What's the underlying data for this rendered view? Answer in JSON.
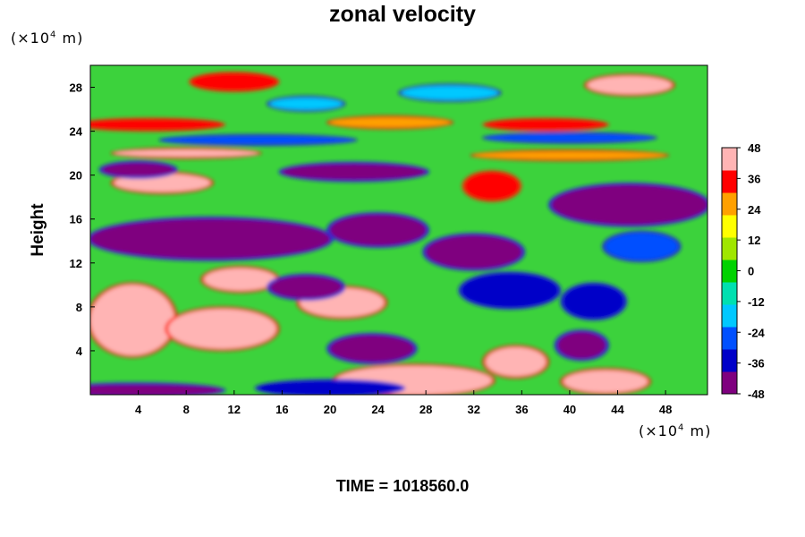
{
  "chart_data": {
    "type": "heatmap",
    "title": "zonal velocity",
    "ylabel": "Height",
    "xlabel": "",
    "x_unit_prefix": "(×10",
    "x_unit_exp": "4",
    "x_unit_suffix": " m)",
    "y_unit_prefix": "(×10",
    "y_unit_exp": "4",
    "y_unit_suffix": " m)",
    "xlim": [
      0,
      51.5
    ],
    "ylim": [
      0,
      30
    ],
    "x_ticks": [
      4,
      8,
      12,
      16,
      20,
      24,
      28,
      32,
      36,
      40,
      44,
      48
    ],
    "y_ticks": [
      4,
      8,
      12,
      16,
      20,
      24,
      28
    ],
    "colorbar": {
      "range": [
        -48,
        48
      ],
      "ticks": [
        48,
        36,
        24,
        12,
        0,
        -12,
        -24,
        -36,
        -48
      ],
      "colors": [
        "#7f007f",
        "#0000c8",
        "#0050ff",
        "#00c8ff",
        "#00e0b0",
        "#00d200",
        "#a0e600",
        "#ffff00",
        "#ffa000",
        "#ff0000",
        "#ffb4b4"
      ]
    },
    "features": [
      {
        "x": 6,
        "y": 19.3,
        "rx": 4,
        "ry": 0.8,
        "value": 48
      },
      {
        "x": 3.5,
        "y": 6.8,
        "rx": 3.5,
        "ry": 3.2,
        "value": 48
      },
      {
        "x": 11,
        "y": 6.0,
        "rx": 4.5,
        "ry": 1.8,
        "value": 46
      },
      {
        "x": 12.5,
        "y": 10.5,
        "rx": 3,
        "ry": 1.0,
        "value": 45
      },
      {
        "x": 21,
        "y": 8.4,
        "rx": 3.5,
        "ry": 1.3,
        "value": 48
      },
      {
        "x": 27,
        "y": 1.3,
        "rx": 6.5,
        "ry": 1.3,
        "value": 48
      },
      {
        "x": 35.5,
        "y": 3.0,
        "rx": 2.5,
        "ry": 1.3,
        "value": 46
      },
      {
        "x": 43,
        "y": 1.2,
        "rx": 3.5,
        "ry": 1.0,
        "value": 44
      },
      {
        "x": 33.5,
        "y": 19.0,
        "rx": 2.2,
        "ry": 1.2,
        "value": 38
      },
      {
        "x": 10,
        "y": 14.2,
        "rx": 10,
        "ry": 1.8,
        "value": -48
      },
      {
        "x": 24,
        "y": 15.0,
        "rx": 4,
        "ry": 1.4,
        "value": -46
      },
      {
        "x": 45,
        "y": 17.3,
        "rx": 6.5,
        "ry": 1.8,
        "value": -46
      },
      {
        "x": 4,
        "y": 20.5,
        "rx": 3,
        "ry": 0.6,
        "value": -44
      },
      {
        "x": 22,
        "y": 20.3,
        "rx": 6,
        "ry": 0.7,
        "value": -44
      },
      {
        "x": 32,
        "y": 13.0,
        "rx": 4,
        "ry": 1.5,
        "value": -40
      },
      {
        "x": 35,
        "y": 9.5,
        "rx": 4,
        "ry": 1.5,
        "value": -36
      },
      {
        "x": 18,
        "y": 9.8,
        "rx": 3,
        "ry": 1.0,
        "value": -40
      },
      {
        "x": 23.5,
        "y": 4.2,
        "rx": 3.5,
        "ry": 1.2,
        "value": -44
      },
      {
        "x": 41,
        "y": 4.5,
        "rx": 2,
        "ry": 1.2,
        "value": -42
      },
      {
        "x": 42,
        "y": 8.5,
        "rx": 2.5,
        "ry": 1.5,
        "value": -34
      },
      {
        "x": 4,
        "y": 0.4,
        "rx": 7,
        "ry": 0.5,
        "value": -46
      },
      {
        "x": 20,
        "y": 0.6,
        "rx": 6,
        "ry": 0.6,
        "value": -36
      },
      {
        "x": 46,
        "y": 13.5,
        "rx": 3,
        "ry": 1.2,
        "value": -30
      },
      {
        "x": 12,
        "y": 28.5,
        "rx": 3.5,
        "ry": 0.7,
        "value": 38
      },
      {
        "x": 45,
        "y": 28.2,
        "rx": 3.5,
        "ry": 0.8,
        "value": 44
      },
      {
        "x": 38,
        "y": 24.6,
        "rx": 5,
        "ry": 0.4,
        "value": 34
      },
      {
        "x": 5,
        "y": 24.6,
        "rx": 6,
        "ry": 0.4,
        "value": 32
      },
      {
        "x": 25,
        "y": 24.8,
        "rx": 5,
        "ry": 0.4,
        "value": 22
      },
      {
        "x": 30,
        "y": 27.5,
        "rx": 4,
        "ry": 0.6,
        "value": -16
      },
      {
        "x": 18,
        "y": 26.5,
        "rx": 3,
        "ry": 0.5,
        "value": -18
      },
      {
        "x": 14,
        "y": 23.2,
        "rx": 8,
        "ry": 0.3,
        "value": -28
      },
      {
        "x": 40,
        "y": 23.4,
        "rx": 7,
        "ry": 0.3,
        "value": -26
      },
      {
        "x": 8,
        "y": 22.0,
        "rx": 6,
        "ry": 0.3,
        "value": 40
      },
      {
        "x": 40,
        "y": 21.8,
        "rx": 8,
        "ry": 0.3,
        "value": 30
      }
    ]
  },
  "footer": {
    "time_label": "TIME = 1018560.0"
  }
}
